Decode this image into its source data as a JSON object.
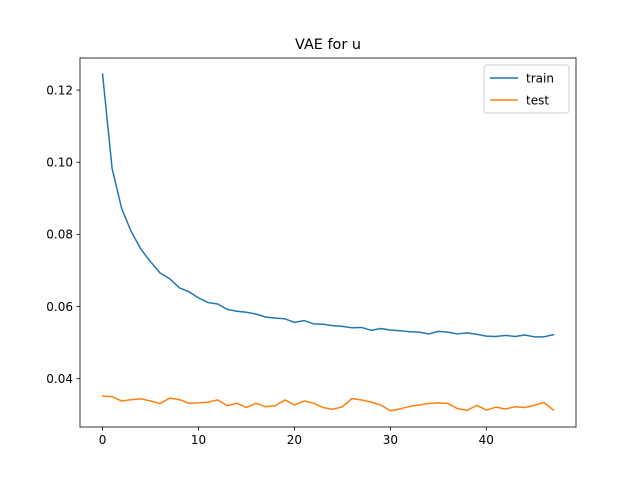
{
  "chart_data": {
    "type": "line",
    "title": "VAE for u",
    "xlabel": "",
    "ylabel": "",
    "xlim": [
      -2.35,
      49.35
    ],
    "ylim": [
      0.0266,
      0.1289
    ],
    "xticks": [
      0,
      10,
      20,
      30,
      40
    ],
    "yticks": [
      0.04,
      0.06,
      0.08,
      0.1,
      0.12
    ],
    "ytick_labels": [
      "0.04",
      "0.06",
      "0.08",
      "0.10",
      "0.12"
    ],
    "grid": false,
    "legend": "top-right",
    "x": [
      0,
      1,
      2,
      3,
      4,
      5,
      6,
      7,
      8,
      9,
      10,
      11,
      12,
      13,
      14,
      15,
      16,
      17,
      18,
      19,
      20,
      21,
      22,
      23,
      24,
      25,
      26,
      27,
      28,
      29,
      30,
      31,
      32,
      33,
      34,
      35,
      36,
      37,
      38,
      39,
      40,
      41,
      42,
      43,
      44,
      45,
      46,
      47
    ],
    "series": [
      {
        "name": "train",
        "color": "#1f77b4",
        "values": [
          0.1244,
          0.0982,
          0.0871,
          0.0807,
          0.0759,
          0.0724,
          0.0693,
          0.0677,
          0.0652,
          0.0641,
          0.0624,
          0.0611,
          0.0607,
          0.0592,
          0.0587,
          0.0584,
          0.0579,
          0.0571,
          0.0568,
          0.0566,
          0.0556,
          0.0561,
          0.0552,
          0.0551,
          0.0547,
          0.0545,
          0.0541,
          0.0542,
          0.0534,
          0.0539,
          0.0535,
          0.0533,
          0.053,
          0.0529,
          0.0524,
          0.0531,
          0.0529,
          0.0524,
          0.0527,
          0.0523,
          0.0518,
          0.0517,
          0.052,
          0.0517,
          0.0521,
          0.0516,
          0.0516,
          0.0522
        ]
      },
      {
        "name": "test",
        "color": "#ff7f0e",
        "values": [
          0.0352,
          0.035,
          0.0338,
          0.0342,
          0.0344,
          0.0338,
          0.0331,
          0.0346,
          0.0342,
          0.0332,
          0.0333,
          0.0335,
          0.0341,
          0.0325,
          0.0332,
          0.032,
          0.0332,
          0.0322,
          0.0325,
          0.0341,
          0.0327,
          0.0338,
          0.0332,
          0.032,
          0.0315,
          0.0322,
          0.0345,
          0.0341,
          0.0335,
          0.0327,
          0.0311,
          0.0316,
          0.0323,
          0.0327,
          0.0331,
          0.0333,
          0.0331,
          0.0317,
          0.0312,
          0.0326,
          0.0313,
          0.0321,
          0.0316,
          0.0322,
          0.032,
          0.0326,
          0.0334,
          0.0313
        ]
      }
    ]
  }
}
